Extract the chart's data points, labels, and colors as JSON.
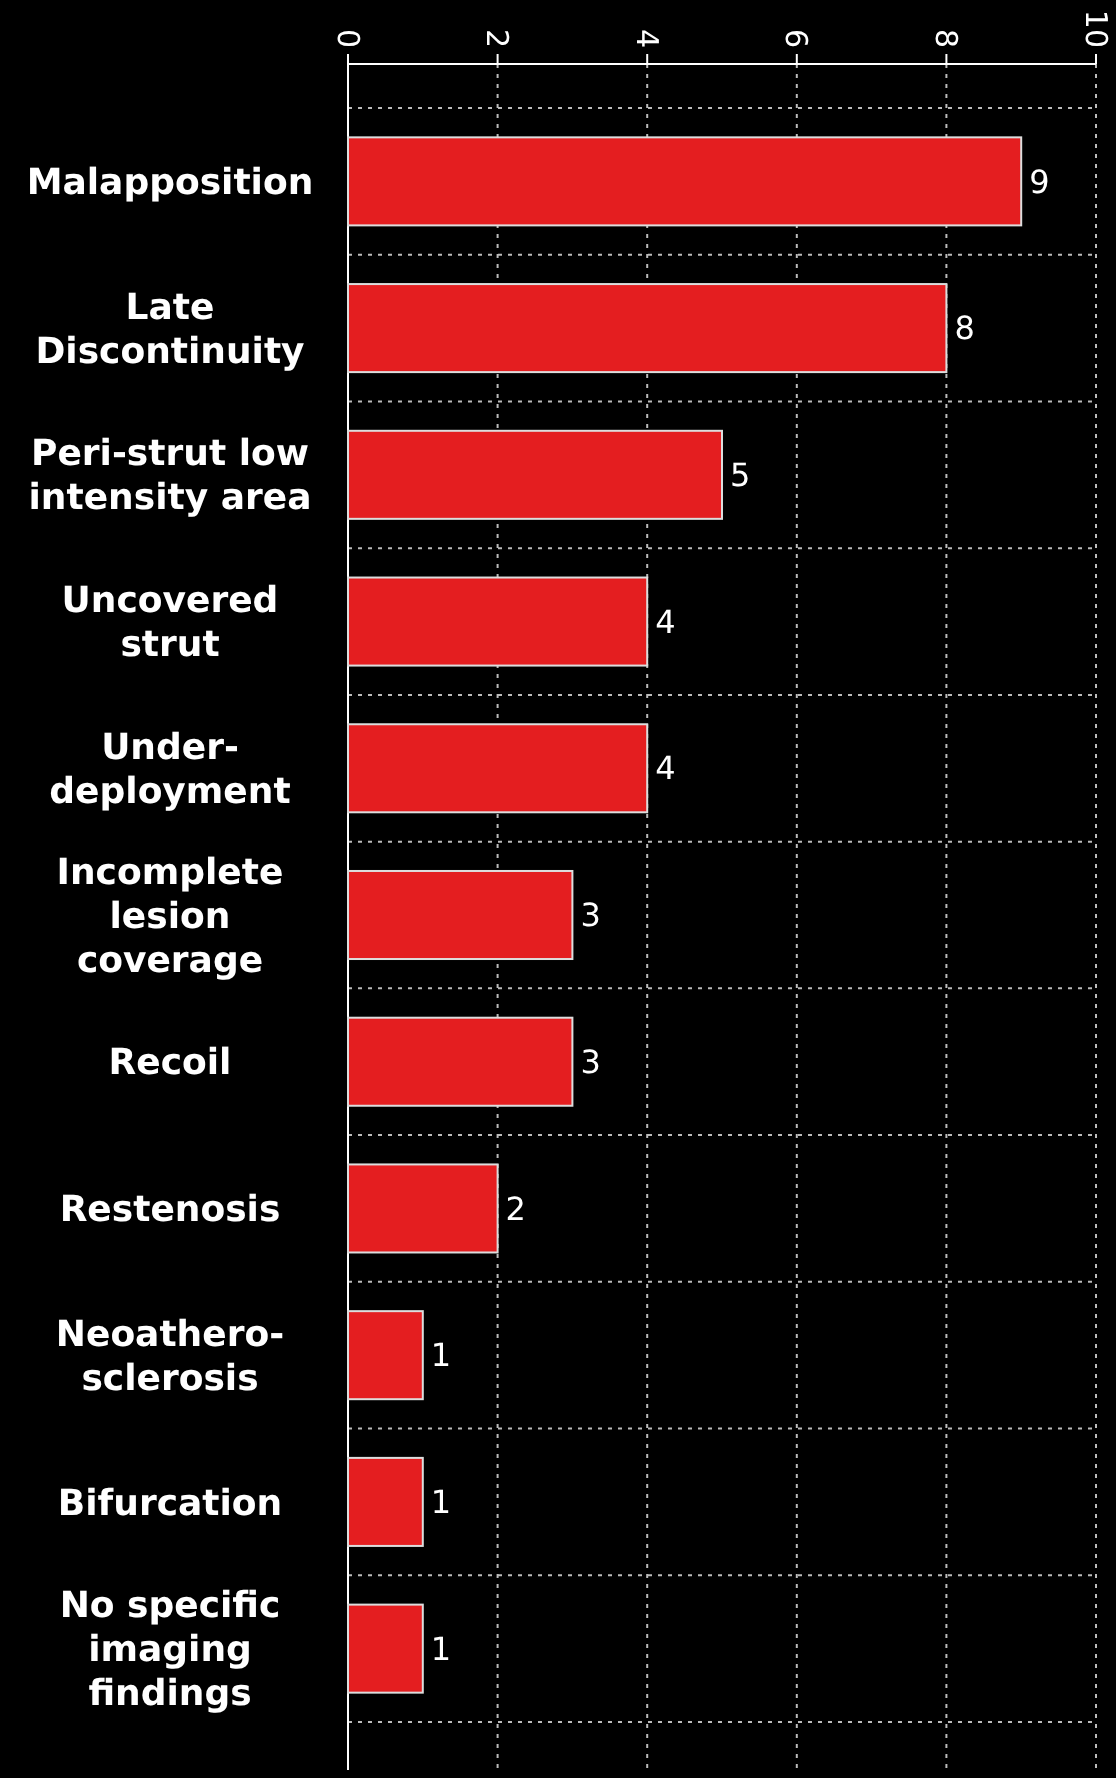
{
  "chart_data": {
    "type": "bar",
    "orientation": "horizontal",
    "categories": [
      "Malapposition",
      "Late Discontinuity",
      "Peri-strut low intensity area",
      "Uncovered strut",
      "Under-deployment",
      "Incomplete lesion coverage",
      "Recoil",
      "Restenosis",
      "Neoathero-sclerosis",
      "Bifurcation",
      "No specific imaging findings"
    ],
    "values": [
      9,
      8,
      5,
      4,
      4,
      3,
      3,
      2,
      1,
      1,
      1
    ],
    "color": "#e41e20",
    "xlim": [
      0,
      10
    ],
    "xticks": [
      0,
      2,
      4,
      6,
      8,
      10
    ],
    "grid": true,
    "data_labels": true
  }
}
